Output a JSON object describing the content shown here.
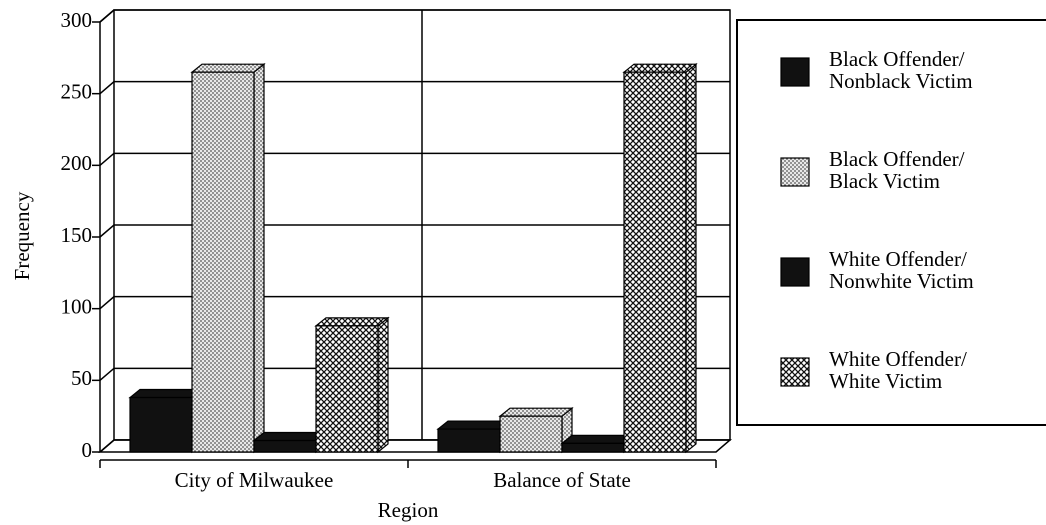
{
  "chart_data": {
    "type": "bar3d",
    "x_label": "Region",
    "y_label": "Frequency",
    "categories": [
      "City of Milwaukee",
      "Balance of State"
    ],
    "series": [
      {
        "name": "Black Offender/\nNonblack Victim",
        "color": "#111111",
        "pattern": "solid",
        "values": [
          38,
          16
        ]
      },
      {
        "name": "Black Offender/\nBlack Victim",
        "color": "#b8b8b8",
        "pattern": "dots",
        "values": [
          265,
          25
        ]
      },
      {
        "name": "White Offender/\nNonwhite Victim",
        "color": "#111111",
        "pattern": "solid",
        "values": [
          8,
          6
        ]
      },
      {
        "name": "White Offender/\nWhite Victim",
        "color": "#222222",
        "pattern": "crosshatch",
        "values": [
          88,
          265
        ]
      }
    ],
    "ylim": [
      0,
      300
    ],
    "yticks": [
      0,
      50,
      100,
      150,
      200,
      250,
      300
    ],
    "grid": true,
    "legend": "right"
  }
}
